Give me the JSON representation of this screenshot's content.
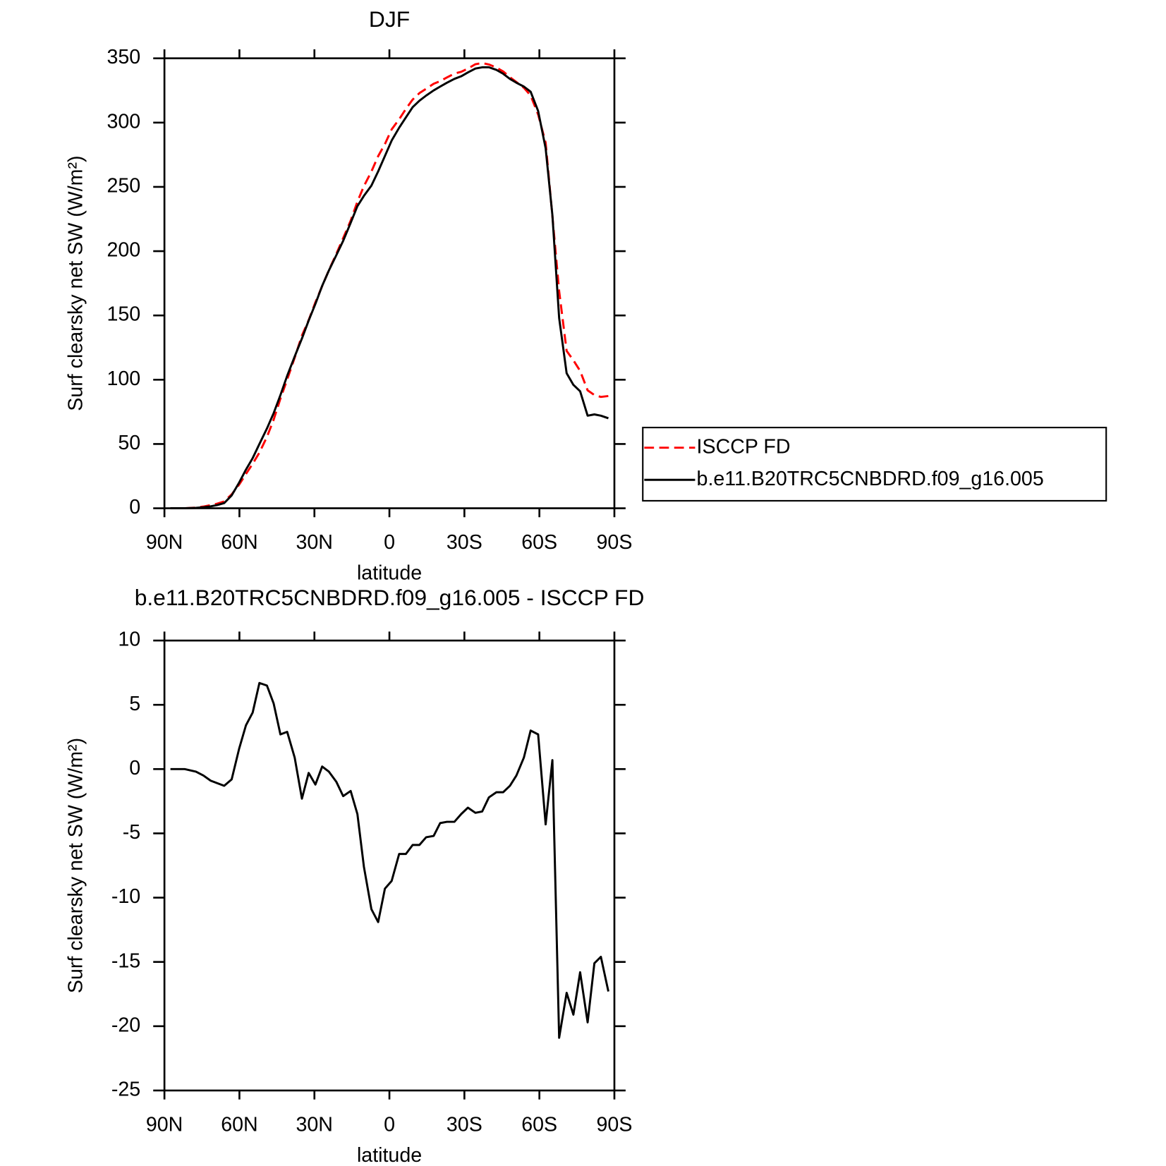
{
  "chart_data": [
    {
      "type": "line",
      "title": "DJF",
      "xlabel": "latitude",
      "ylabel": "Surf clearsky net SW (W/m²)",
      "x": [
        87.6,
        81.9,
        77.4,
        74.4,
        71.5,
        68.8,
        66.1,
        63.1,
        60.1,
        57.4,
        54.7,
        52.0,
        49.0,
        46.3,
        43.6,
        40.9,
        37.9,
        35.0,
        32.3,
        29.6,
        26.9,
        24.2,
        21.2,
        18.5,
        15.5,
        12.8,
        10.2,
        7.2,
        4.5,
        1.8,
        -0.9,
        -3.9,
        -6.6,
        -9.3,
        -12.0,
        -14.7,
        -17.7,
        -20.3,
        -23.0,
        -26.0,
        -28.7,
        -31.4,
        -34.4,
        -37.1,
        -39.8,
        -42.8,
        -45.5,
        -48.2,
        -50.8,
        -53.8,
        -56.5,
        -59.5,
        -62.5,
        -65.2,
        -67.9,
        -70.9,
        -73.6,
        -76.3,
        -79.3,
        -82.0,
        -84.6,
        -87.6
      ],
      "series": [
        {
          "name": "ISCCP FD",
          "color": "#ff0000",
          "dashed": true,
          "values": [
            0,
            0,
            0.5,
            1.3,
            2.4,
            3.6,
            5.3,
            10.8,
            18.4,
            26.6,
            34.6,
            43.3,
            55.5,
            68.9,
            85.3,
            100.1,
            117.1,
            134.3,
            146.3,
            160.2,
            172.8,
            185.2,
            198,
            210.1,
            223.7,
            238.5,
            250.6,
            261.9,
            273.9,
            283.3,
            294.7,
            302.6,
            310.6,
            317.9,
            322.9,
            326.3,
            330.2,
            332.2,
            335.1,
            338.1,
            339.5,
            342,
            345.4,
            346.3,
            345.2,
            342.8,
            339.8,
            335.3,
            331.5,
            327.1,
            321,
            306.3,
            284.3,
            227.3,
            168.9,
            122.4,
            115.1,
            106.8,
            91.7,
            88.1,
            86.6,
            87.3
          ]
        },
        {
          "name": "b.e11.B20TRC5CNBDRD.f09_g16.005",
          "color": "#000000",
          "dashed": false,
          "values": [
            0,
            0,
            0.3,
            0.8,
            1.5,
            2.5,
            4,
            10,
            20,
            30,
            39,
            50,
            62,
            74,
            88,
            103,
            118,
            132,
            146,
            159,
            173,
            185,
            197,
            208,
            222,
            235,
            243,
            251,
            262,
            274,
            286,
            296,
            304,
            312,
            317,
            321,
            325,
            328,
            331,
            334,
            336,
            339,
            342,
            343,
            343,
            341,
            338,
            334,
            331,
            328,
            324,
            309,
            280,
            228,
            148,
            105,
            96,
            91,
            72,
            73,
            72,
            70
          ]
        }
      ],
      "xlim": [
        90,
        -90
      ],
      "xticks": [
        {
          "value": 90,
          "label": "90N"
        },
        {
          "value": 60,
          "label": "60N"
        },
        {
          "value": 30,
          "label": "30N"
        },
        0,
        {
          "value": -30,
          "label": "30S"
        },
        {
          "value": -60,
          "label": "60S"
        },
        {
          "value": -90,
          "label": "90S"
        }
      ],
      "ylim": [
        0,
        350
      ],
      "yticks": [
        0,
        50,
        100,
        150,
        200,
        250,
        300,
        350
      ],
      "legend": "right"
    },
    {
      "type": "line",
      "title": "b.e11.B20TRC5CNBDRD.f09_g16.005 - ISCCP FD",
      "xlabel": "latitude",
      "ylabel": "Surf clearsky net SW (W/m²)",
      "x": [
        87.6,
        81.9,
        77.4,
        74.4,
        71.5,
        68.8,
        66.1,
        63.1,
        60.1,
        57.4,
        54.7,
        52.0,
        49.0,
        46.3,
        43.6,
        40.9,
        37.9,
        35.0,
        32.3,
        29.6,
        26.9,
        24.2,
        21.2,
        18.5,
        15.5,
        12.8,
        10.2,
        7.2,
        4.5,
        1.8,
        -0.9,
        -3.9,
        -6.6,
        -9.3,
        -12.0,
        -14.7,
        -17.7,
        -20.3,
        -23.0,
        -26.0,
        -28.7,
        -31.4,
        -34.4,
        -37.1,
        -39.8,
        -42.8,
        -45.5,
        -48.2,
        -50.8,
        -53.8,
        -56.5,
        -59.5,
        -62.5,
        -65.2,
        -67.9,
        -70.9,
        -73.6,
        -76.3,
        -79.3,
        -82.0,
        -84.6,
        -87.6
      ],
      "values": [
        0,
        0,
        -0.2,
        -0.5,
        -0.9,
        -1.1,
        -1.3,
        -0.8,
        1.6,
        3.4,
        4.4,
        6.7,
        6.5,
        5.1,
        2.7,
        2.9,
        0.9,
        -2.3,
        -0.3,
        -1.2,
        0.2,
        -0.2,
        -1.0,
        -2.1,
        -1.7,
        -3.5,
        -7.6,
        -10.9,
        -11.9,
        -9.3,
        -8.7,
        -6.6,
        -6.6,
        -5.9,
        -5.9,
        -5.3,
        -5.2,
        -4.2,
        -4.1,
        -4.1,
        -3.5,
        -3.0,
        -3.4,
        -3.3,
        -2.2,
        -1.8,
        -1.8,
        -1.3,
        -0.5,
        0.9,
        3.0,
        2.7,
        -4.3,
        0.7,
        -20.9,
        -17.4,
        -19.1,
        -15.8,
        -19.7,
        -15.1,
        -14.6,
        -17.3
      ],
      "color": "#000000",
      "xlim": [
        90,
        -90
      ],
      "xticks": [
        {
          "value": 90,
          "label": "90N"
        },
        {
          "value": 60,
          "label": "60N"
        },
        {
          "value": 30,
          "label": "30N"
        },
        0,
        {
          "value": -30,
          "label": "30S"
        },
        {
          "value": -60,
          "label": "60S"
        },
        {
          "value": -90,
          "label": "90S"
        }
      ],
      "ylim": [
        -25,
        10
      ],
      "yticks": [
        -25,
        -20,
        -15,
        -10,
        -5,
        0,
        5,
        10
      ]
    }
  ]
}
